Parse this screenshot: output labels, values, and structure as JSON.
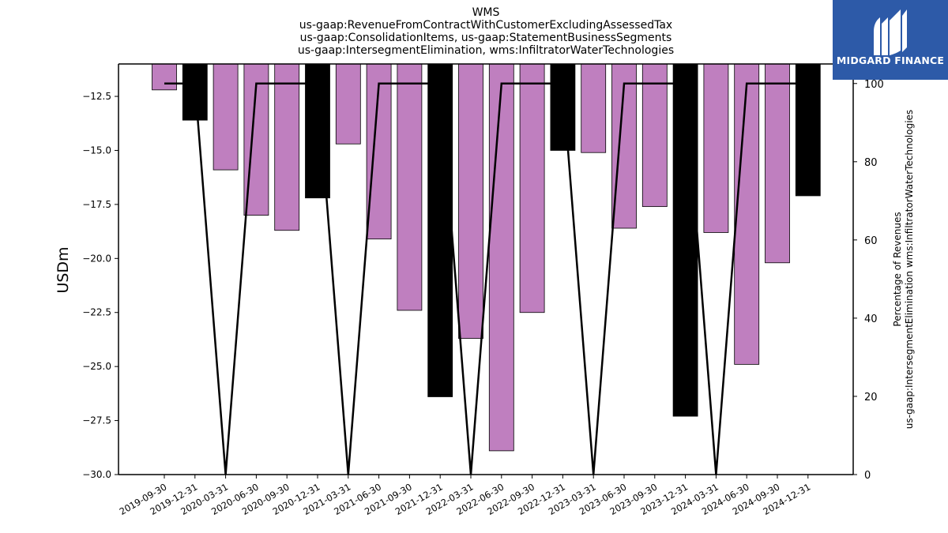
{
  "title": {
    "lines": [
      "WMS",
      "us-gaap:RevenueFromContractWithCustomerExcludingAssessedTax",
      "us-gaap:ConsolidationItems, us-gaap:StatementBusinessSegments",
      "us-gaap:IntersegmentElimination, wms:InfiltratorWaterTechnologies"
    ]
  },
  "logo": {
    "text": "MIDGARD FINANCE",
    "background": "#2d5aa8"
  },
  "chart_data": {
    "type": "bar",
    "categories": [
      "2019-09-30",
      "2019-12-31",
      "2020-03-31",
      "2020-06-30",
      "2020-09-30",
      "2020-12-31",
      "2021-03-31",
      "2021-06-30",
      "2021-09-30",
      "2021-12-31",
      "2022-03-31",
      "2022-06-30",
      "2022-09-30",
      "2022-12-31",
      "2023-03-31",
      "2023-06-30",
      "2023-09-30",
      "2023-12-31",
      "2024-03-31",
      "2024-06-30",
      "2024-09-30",
      "2024-12-31"
    ],
    "series": [
      {
        "axis": "left",
        "kind": "bar",
        "values": [
          -12.2,
          -13.6,
          -15.9,
          -18.0,
          -18.7,
          -17.2,
          -14.7,
          -19.1,
          -22.4,
          -26.4,
          -23.7,
          -28.9,
          -22.5,
          -15.0,
          -15.1,
          -18.6,
          -17.6,
          -27.3,
          -18.8,
          -24.9,
          -20.2,
          -17.1
        ],
        "colors": [
          "#bf7fbf",
          "#000000",
          "#bf7fbf",
          "#bf7fbf",
          "#bf7fbf",
          "#000000",
          "#bf7fbf",
          "#bf7fbf",
          "#bf7fbf",
          "#000000",
          "#bf7fbf",
          "#bf7fbf",
          "#bf7fbf",
          "#000000",
          "#bf7fbf",
          "#bf7fbf",
          "#bf7fbf",
          "#000000",
          "#bf7fbf",
          "#bf7fbf",
          "#bf7fbf",
          "#000000"
        ]
      },
      {
        "axis": "right",
        "kind": "line",
        "color": "#000000",
        "values": [
          100,
          100,
          0,
          100,
          100,
          100,
          0,
          100,
          100,
          100,
          0,
          100,
          100,
          100,
          0,
          100,
          100,
          100,
          0,
          100,
          100,
          100
        ]
      }
    ],
    "ylabel": "USDm",
    "ylabel_right": [
      "Percentage of Revenues",
      "us-gaap:IntersegmentElimination wms:InfiltratorWaterTechnologies"
    ],
    "ylim": [
      -30.0,
      -11.0
    ],
    "ylim_right": [
      0,
      105
    ],
    "yticks": [
      "−12.5",
      "−15.0",
      "−17.5",
      "−20.0",
      "−22.5",
      "−25.0",
      "−27.5",
      "−30.0"
    ],
    "yticks_right": [
      "0",
      "20",
      "40",
      "60",
      "80",
      "100"
    ],
    "grid": false,
    "legend": "none"
  }
}
